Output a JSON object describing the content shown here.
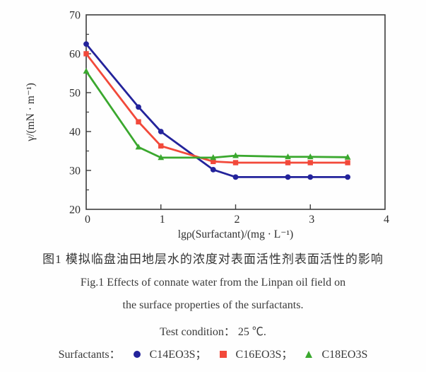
{
  "chart_data": {
    "type": "line",
    "title": "",
    "xlabel": "lgρ(Surfactant)/(mg · L⁻¹)",
    "ylabel": "γ/(mN · m⁻¹)",
    "xlim": [
      0,
      4
    ],
    "ylim": [
      20,
      70
    ],
    "x_ticks": [
      0,
      1,
      2,
      3,
      4
    ],
    "y_ticks": [
      20,
      30,
      40,
      50,
      60,
      70
    ],
    "y_minor_step": 5,
    "grid": false,
    "legend_position": "below-caption",
    "x": [
      0,
      0.7,
      1,
      1.7,
      2,
      2.7,
      3,
      3.5
    ],
    "series": [
      {
        "name": "C14EO3S",
        "color": "#23239b",
        "marker": "circle",
        "values": [
          62.5,
          46.3,
          40.0,
          30.2,
          28.3,
          28.3,
          28.3,
          28.3
        ]
      },
      {
        "name": "C16EO3S",
        "color": "#f2493a",
        "marker": "square",
        "values": [
          60.0,
          42.5,
          36.3,
          32.3,
          32.0,
          32.0,
          32.0,
          32.0
        ]
      },
      {
        "name": "C18EO3S",
        "color": "#3aa82e",
        "marker": "triangle",
        "values": [
          55.5,
          36.0,
          33.3,
          33.3,
          33.8,
          33.5,
          33.5,
          33.4
        ]
      }
    ]
  },
  "caption": {
    "chinese": "图1  模拟临盘油田地层水的浓度对表面活性剂表面活性的影响",
    "fig_line1": "Fig.1  Effects of connate water from the Linpan oil field on",
    "fig_line2": "the surface properties of the surfactants.",
    "condition": "Test condition： 25 ℃.",
    "legend_title": "Surfactants：",
    "legend_items": [
      {
        "label": "C14EO3S；",
        "marker": "circle",
        "color": "#23239b"
      },
      {
        "label": "C16EO3S；",
        "marker": "square",
        "color": "#f2493a"
      },
      {
        "label": "C18EO3S",
        "marker": "triangle",
        "color": "#3aa82e"
      }
    ]
  }
}
